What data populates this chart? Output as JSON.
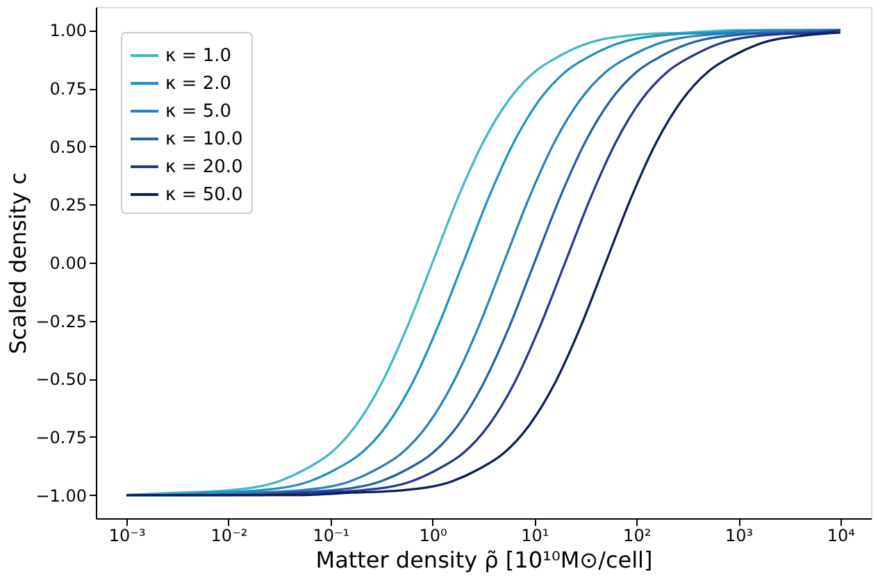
{
  "chart_data": {
    "type": "line",
    "xlabel": "Matter density ρ̃ [10¹⁰M⊙/cell]",
    "ylabel": "Scaled density c",
    "xlim": [
      0.0005,
      20000
    ],
    "ylim": [
      -1.1,
      1.1
    ],
    "xticks": [
      {
        "value": 0.001,
        "label": "10⁻³"
      },
      {
        "value": 0.01,
        "label": "10⁻²"
      },
      {
        "value": 0.1,
        "label": "10⁻¹"
      },
      {
        "value": 1,
        "label": "10⁰"
      },
      {
        "value": 10,
        "label": "10¹"
      },
      {
        "value": 100,
        "label": "10²"
      },
      {
        "value": 1000,
        "label": "10³"
      },
      {
        "value": 10000,
        "label": "10⁴"
      }
    ],
    "yticks": [
      {
        "value": -1,
        "label": "−1.00"
      },
      {
        "value": -0.75,
        "label": "−0.75"
      },
      {
        "value": -0.5,
        "label": "−0.50"
      },
      {
        "value": -0.25,
        "label": "−0.25"
      },
      {
        "value": 0,
        "label": "0.00"
      },
      {
        "value": 0.25,
        "label": "0.25"
      },
      {
        "value": 0.5,
        "label": "0.50"
      },
      {
        "value": 0.75,
        "label": "0.75"
      },
      {
        "value": 1,
        "label": "1.00"
      }
    ],
    "log": "x",
    "grid": false,
    "legend": "top left",
    "marker": "none",
    "line_style": "solid",
    "series": [
      {
        "name": "κ = 1.0",
        "color": "#41b6c4",
        "x": [
          0.001,
          0.00316,
          0.01,
          0.0316,
          0.0562,
          0.1,
          0.178,
          0.316,
          0.562,
          1,
          1.78,
          3.16,
          5.62,
          10,
          17.8,
          31.6,
          100,
          316,
          1000,
          10000
        ],
        "values": [
          -1.0,
          -0.99,
          -0.98,
          -0.94,
          -0.89,
          -0.82,
          -0.7,
          -0.52,
          -0.28,
          0,
          0.28,
          0.52,
          0.7,
          0.82,
          0.89,
          0.94,
          0.98,
          0.99,
          1.0,
          1.0
        ]
      },
      {
        "name": "κ = 2.0",
        "color": "#1d91c0",
        "x": [
          0.001,
          0.002,
          0.00632,
          0.02,
          0.0632,
          0.112,
          0.2,
          0.356,
          0.632,
          1.12,
          2,
          3.56,
          6.32,
          11.2,
          20,
          35.6,
          63.2,
          200,
          632,
          2000,
          10000
        ],
        "values": [
          -1.0,
          -1.0,
          -0.99,
          -0.98,
          -0.94,
          -0.89,
          -0.82,
          -0.7,
          -0.52,
          -0.28,
          0,
          0.28,
          0.52,
          0.7,
          0.82,
          0.89,
          0.94,
          0.98,
          0.99,
          1.0,
          1.0
        ]
      },
      {
        "name": "κ = 5.0",
        "color": "#2c7fb8",
        "x": [
          0.001,
          0.005,
          0.0158,
          0.05,
          0.158,
          0.281,
          0.5,
          0.889,
          1.58,
          2.81,
          5,
          8.89,
          15.8,
          28.1,
          50,
          88.9,
          158,
          500,
          1580,
          5000,
          10000
        ],
        "values": [
          -1.0,
          -1.0,
          -0.99,
          -0.98,
          -0.94,
          -0.89,
          -0.82,
          -0.7,
          -0.52,
          -0.28,
          0,
          0.28,
          0.52,
          0.7,
          0.82,
          0.89,
          0.94,
          0.98,
          0.99,
          1.0,
          1.0
        ]
      },
      {
        "name": "κ = 10.0",
        "color": "#225ea8",
        "x": [
          0.001,
          0.01,
          0.0316,
          0.1,
          0.316,
          0.562,
          1,
          1.78,
          3.16,
          5.62,
          10,
          17.8,
          31.6,
          56.2,
          100,
          178,
          316,
          1000,
          3160,
          10000
        ],
        "values": [
          -1.0,
          -1.0,
          -0.99,
          -0.98,
          -0.94,
          -0.89,
          -0.82,
          -0.7,
          -0.52,
          -0.28,
          0,
          0.28,
          0.52,
          0.7,
          0.82,
          0.89,
          0.94,
          0.98,
          0.99,
          1.0
        ]
      },
      {
        "name": "κ = 20.0",
        "color": "#253494",
        "x": [
          0.001,
          0.02,
          0.0632,
          0.2,
          0.632,
          1.12,
          2,
          3.56,
          6.32,
          11.2,
          20,
          35.6,
          63.2,
          112,
          200,
          356,
          632,
          2000,
          6320,
          10000
        ],
        "values": [
          -1.0,
          -1.0,
          -0.99,
          -0.98,
          -0.94,
          -0.89,
          -0.82,
          -0.7,
          -0.52,
          -0.28,
          0,
          0.28,
          0.52,
          0.7,
          0.82,
          0.89,
          0.94,
          0.98,
          0.99,
          1.0
        ]
      },
      {
        "name": "κ = 50.0",
        "color": "#081d58",
        "x": [
          0.001,
          0.05,
          0.158,
          0.5,
          1.58,
          2.81,
          5,
          8.89,
          15.8,
          28.1,
          50,
          88.9,
          158,
          281,
          500,
          889,
          1580,
          5000,
          10000
        ],
        "values": [
          -1.0,
          -1.0,
          -0.99,
          -0.98,
          -0.94,
          -0.89,
          -0.82,
          -0.7,
          -0.52,
          -0.28,
          0,
          0.28,
          0.52,
          0.7,
          0.82,
          0.89,
          0.94,
          0.98,
          0.99
        ]
      }
    ]
  }
}
